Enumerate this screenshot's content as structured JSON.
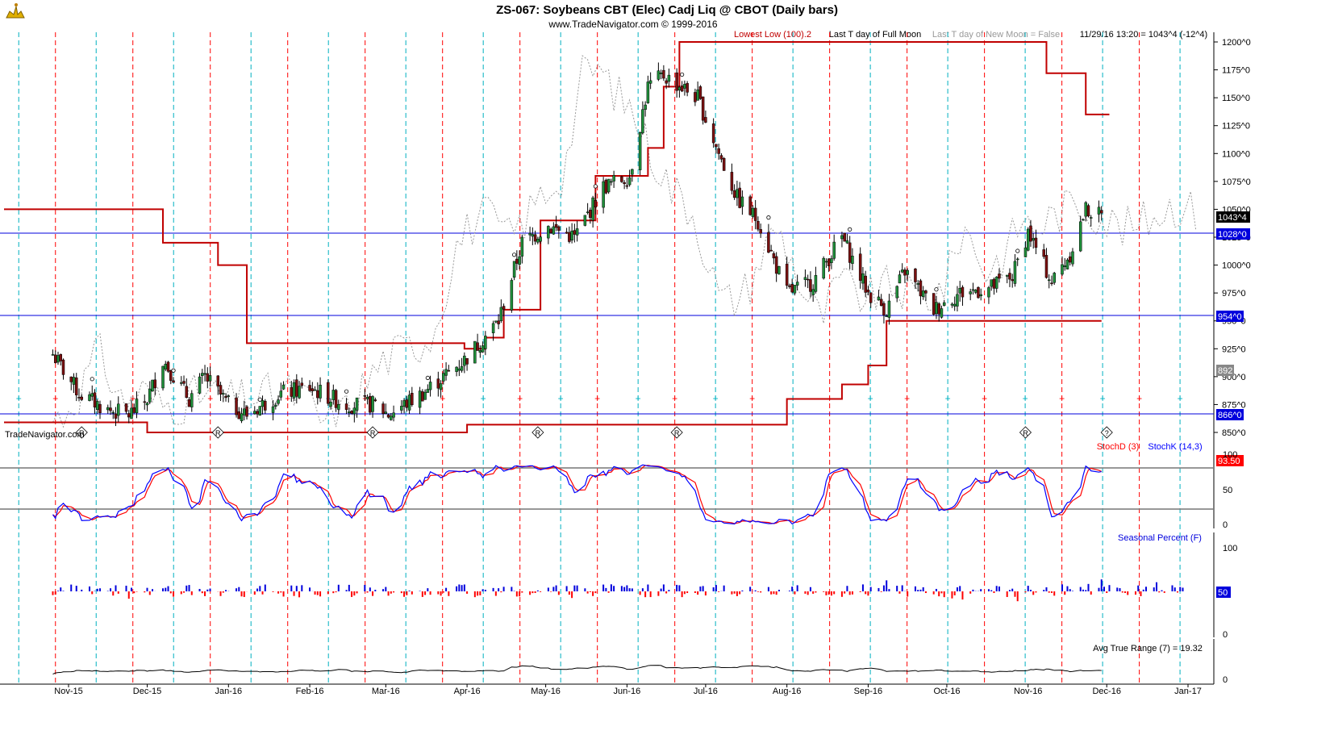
{
  "header": {
    "title": "ZS-067:  Soybeans CBT (Elec) Cadj Liq @ CBOT  (Daily bars)",
    "copyright": "www.TradeNavigator.com © 1999-2016",
    "watermark": "TradeNavigator.com"
  },
  "legend_top": {
    "lowest_low": "Lowest Low (100).2",
    "full_moon": "Last T day of Full Moon",
    "new_moon": "Last T day of New Moon = False",
    "quote": "11/29/16 13:20 = 1043^4 (-12^4)"
  },
  "colors": {
    "red_line": "#c00000",
    "blue_line": "#0000dd",
    "cyan_dash": "#00b0c0",
    "red_dash": "#ff0000",
    "seasonal": "#999999",
    "stoch_k": "#0000ff",
    "stoch_d": "#ff0000"
  },
  "price_axis": {
    "ticks": [
      "1200^0",
      "1175^0",
      "1150^0",
      "1125^0",
      "1100^0",
      "1075^0",
      "1050^0",
      "1025^0",
      "1000^0",
      "975^0",
      "950^0",
      "925^0",
      "900^0",
      "875^0",
      "850^0"
    ],
    "current": "1043^4",
    "level_1028": "1028^0",
    "level_954": "954^0",
    "level_866": "866^0",
    "seasonal_box": "892"
  },
  "stoch_panel": {
    "label_d": "StochD (3)",
    "label_k": "StochK (14,3)",
    "value": "93.50",
    "ticks": [
      "100",
      "50",
      "0"
    ]
  },
  "seasonal_panel": {
    "label": "Seasonal Percent (F)",
    "value": "50",
    "ticks": [
      "100",
      "0"
    ]
  },
  "atr_panel": {
    "label": "Avg True Range (7) = 19.32",
    "ticks": [
      "0"
    ]
  },
  "x_axis": {
    "labels": [
      "Nov-15",
      "Dec-15",
      "Jan-16",
      "Feb-16",
      "Mar-16",
      "Apr-16",
      "May-16",
      "Jun-16",
      "Jul-16",
      "Aug-16",
      "Sep-16",
      "Oct-16",
      "Nov-16",
      "Dec-16",
      "Jan-17"
    ]
  },
  "chart_data": {
    "type": "candlestick",
    "title": "ZS-067:  Soybeans CBT (Elec) Cadj Liq @ CBOT  (Daily bars)",
    "y_range": [
      840,
      1210
    ],
    "horizontal_levels": [
      1028,
      954,
      866
    ],
    "price_path": [
      [
        "2015-10-26",
        920
      ],
      [
        "2015-11-05",
        885
      ],
      [
        "2015-11-16",
        870
      ],
      [
        "2015-11-24",
        866
      ],
      [
        "2015-12-01",
        880
      ],
      [
        "2015-12-07",
        915
      ],
      [
        "2015-12-17",
        880
      ],
      [
        "2015-12-23",
        900
      ],
      [
        "2016-01-01",
        875
      ],
      [
        "2016-01-08",
        866
      ],
      [
        "2016-01-21",
        885
      ],
      [
        "2016-02-01",
        890
      ],
      [
        "2016-02-15",
        875
      ],
      [
        "2016-02-26",
        875
      ],
      [
        "2016-03-02",
        866
      ],
      [
        "2016-03-15",
        885
      ],
      [
        "2016-03-31",
        915
      ],
      [
        "2016-04-13",
        950
      ],
      [
        "2016-04-22",
        1020
      ],
      [
        "2016-05-02",
        1035
      ],
      [
        "2016-05-12",
        1025
      ],
      [
        "2016-05-23",
        1070
      ],
      [
        "2016-06-02",
        1080
      ],
      [
        "2016-06-09",
        1160
      ],
      [
        "2016-06-15",
        1170
      ],
      [
        "2016-06-28",
        1150
      ],
      [
        "2016-07-06",
        1100
      ],
      [
        "2016-07-13",
        1060
      ],
      [
        "2016-07-21",
        1040
      ],
      [
        "2016-08-01",
        975
      ],
      [
        "2016-08-11",
        985
      ],
      [
        "2016-08-22",
        1025
      ],
      [
        "2016-09-01",
        975
      ],
      [
        "2016-09-08",
        960
      ],
      [
        "2016-09-15",
        995
      ],
      [
        "2016-09-26",
        960
      ],
      [
        "2016-10-06",
        975
      ],
      [
        "2016-10-18",
        980
      ],
      [
        "2016-10-26",
        990
      ],
      [
        "2016-11-01",
        1030
      ],
      [
        "2016-11-10",
        985
      ],
      [
        "2016-11-17",
        1010
      ],
      [
        "2016-11-23",
        1050
      ],
      [
        "2016-11-29",
        1043.5
      ]
    ],
    "lowest_low_100": [
      [
        "2015-10-26",
        859
      ],
      [
        "2015-11-30",
        859
      ],
      [
        "2015-12-01",
        850
      ],
      [
        "2016-03-31",
        850
      ],
      [
        "2016-04-01",
        857
      ],
      [
        "2016-07-29",
        857
      ],
      [
        "2016-08-01",
        880
      ],
      [
        "2016-08-22",
        893
      ],
      [
        "2016-09-01",
        910
      ],
      [
        "2016-09-08",
        950
      ],
      [
        "2016-11-29",
        950
      ]
    ],
    "highest_high_resistance": [
      [
        "2015-10-26",
        1050
      ],
      [
        "2015-12-01",
        1050
      ],
      [
        "2015-12-07",
        1020
      ],
      [
        "2015-12-28",
        1000
      ],
      [
        "2016-01-08",
        930
      ],
      [
        "2016-03-21",
        930
      ],
      [
        "2016-03-31",
        925
      ],
      [
        "2016-04-08",
        935
      ],
      [
        "2016-04-15",
        960
      ],
      [
        "2016-04-29",
        1040
      ],
      [
        "2016-05-20",
        1080
      ],
      [
        "2016-06-09",
        1105
      ],
      [
        "2016-06-15",
        1160
      ],
      [
        "2016-06-21",
        1200
      ],
      [
        "2016-11-03",
        1200
      ],
      [
        "2016-11-08",
        1172
      ],
      [
        "2016-11-23",
        1135
      ],
      [
        "2016-12-02",
        1135
      ]
    ],
    "stochastic": {
      "y_range": [
        0,
        100
      ],
      "reference_lines": [
        80,
        20
      ],
      "last_value": 93.5
    },
    "seasonal_percent": {
      "y_range": [
        0,
        100
      ],
      "last_value": 50
    },
    "avg_true_range": {
      "period": 7,
      "last_value": 19.32
    }
  }
}
